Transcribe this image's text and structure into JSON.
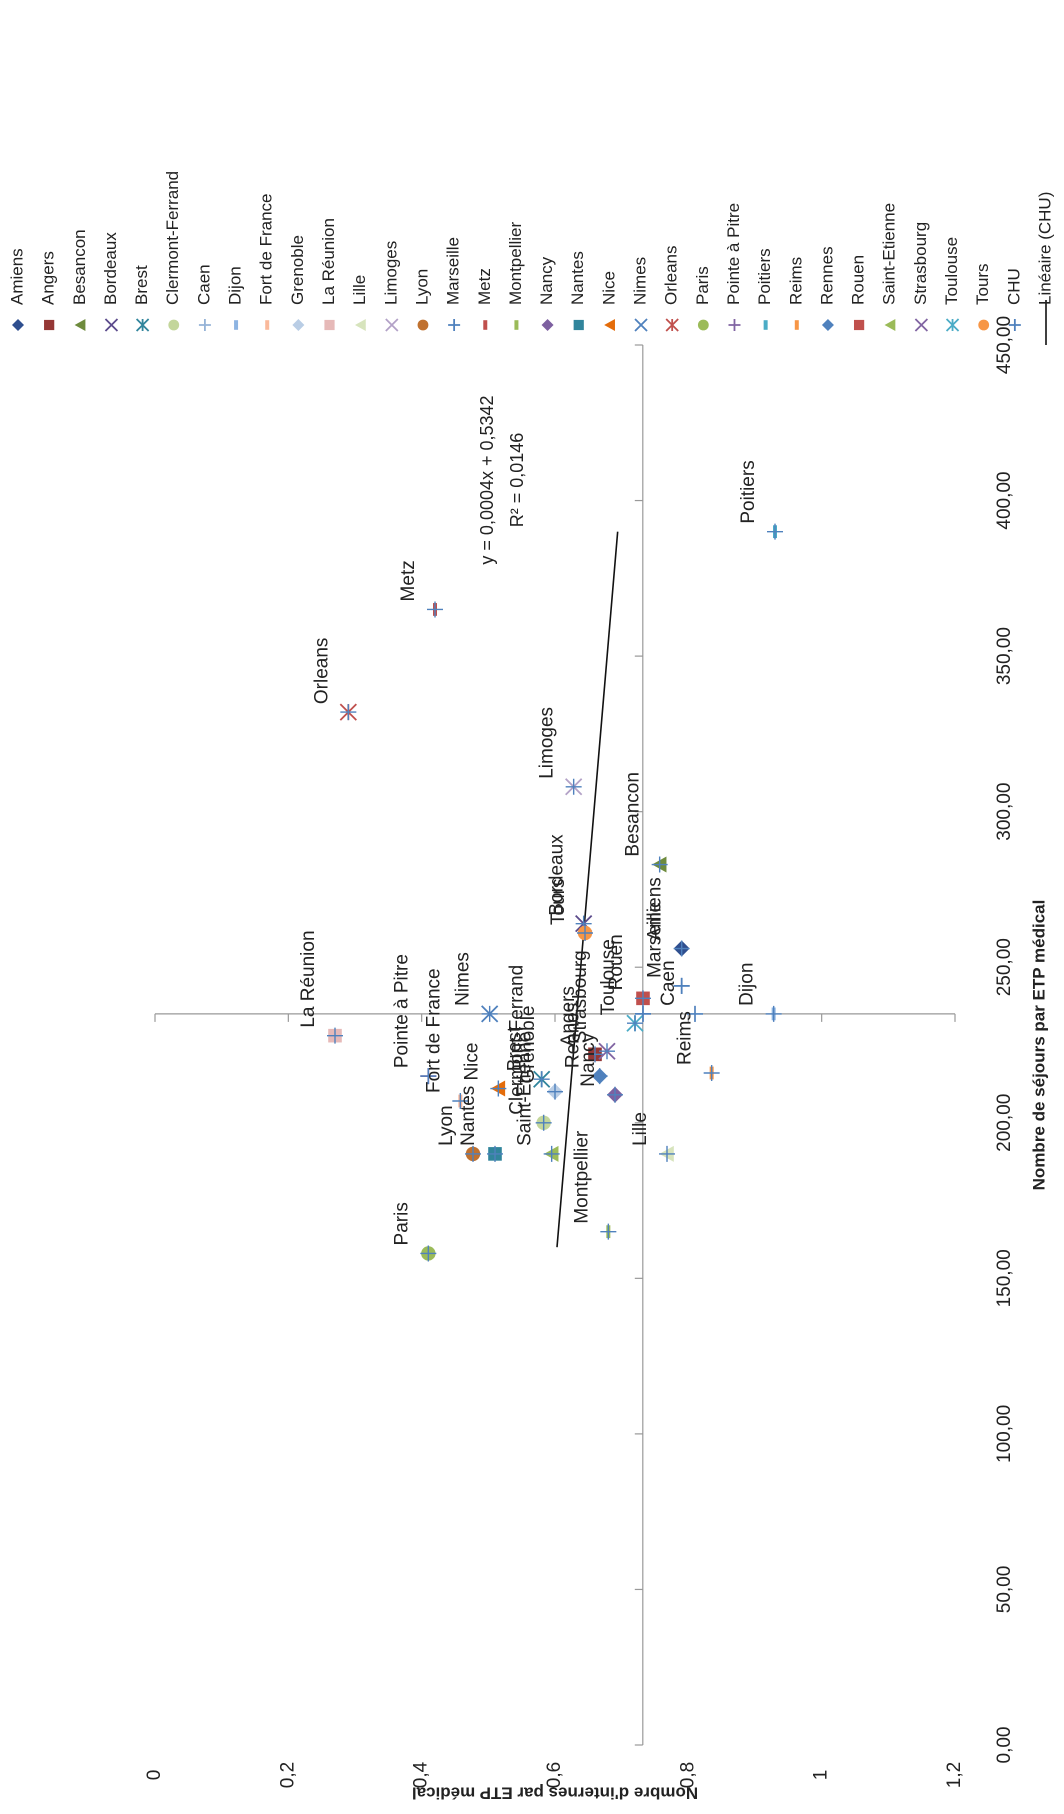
{
  "chart_data": {
    "type": "scatter",
    "title": "",
    "xlabel": "Nombre de séjours par ETP médical",
    "ylabel": "Nombre d'internes par ETP médical",
    "xlim": [
      0,
      450
    ],
    "ylim": [
      0,
      1.2
    ],
    "x_ticks": [
      "0,00",
      "50,00",
      "100,00",
      "150,00",
      "200,00",
      "250,00",
      "300,00",
      "350,00",
      "400,00",
      "450,00"
    ],
    "y_ticks": [
      "0",
      "0,2",
      "0,4",
      "0,6",
      "0,8",
      "1",
      "1,2"
    ],
    "crosshair": {
      "x": 235,
      "y": 0.7317
    },
    "orientation": "rotated 90° clockwise",
    "grid": false,
    "legend_position": "right",
    "points": [
      {
        "name": "Amiens",
        "x": 256,
        "y": 0.79,
        "marker": "diamond",
        "color": "#2f4f8f"
      },
      {
        "name": "Angers",
        "x": 222,
        "y": 0.66,
        "marker": "square",
        "color": "#953735"
      },
      {
        "name": "Besancon",
        "x": 283,
        "y": 0.757,
        "marker": "triangle",
        "color": "#6e8b3d"
      },
      {
        "name": "Bordeaux",
        "x": 264,
        "y": 0.643,
        "marker": "x",
        "color": "#5b4a8b"
      },
      {
        "name": "Brest",
        "x": 214,
        "y": 0.58,
        "marker": "star",
        "color": "#31859c"
      },
      {
        "name": "Clermont-Ferrand",
        "x": 200,
        "y": 0.583,
        "marker": "circle",
        "color": "#c3d69b"
      },
      {
        "name": "Caen",
        "x": 235,
        "y": 0.81,
        "marker": "plus",
        "color": "#95b3d7"
      },
      {
        "name": "Dijon",
        "x": 235,
        "y": 0.928,
        "marker": "dash",
        "color": "#8db4e2"
      },
      {
        "name": "Fort de France",
        "x": 207,
        "y": 0.458,
        "marker": "dash",
        "color": "#fab99b"
      },
      {
        "name": "Grenoble",
        "x": 210,
        "y": 0.6,
        "marker": "diamond",
        "color": "#b9cde5"
      },
      {
        "name": "La Réunion",
        "x": 228,
        "y": 0.27,
        "marker": "square",
        "color": "#e6b9b8"
      },
      {
        "name": "Lille",
        "x": 190,
        "y": 0.768,
        "marker": "triangle",
        "color": "#d7e4bd"
      },
      {
        "name": "Limoges",
        "x": 308,
        "y": 0.628,
        "marker": "x",
        "color": "#b3a2c7"
      },
      {
        "name": "Lyon",
        "x": 190,
        "y": 0.477,
        "marker": "circle",
        "color": "#c0712f"
      },
      {
        "name": "Marseille",
        "x": 244,
        "y": 0.79,
        "marker": "plus",
        "color": "#4f81bd"
      },
      {
        "name": "Metz",
        "x": 365,
        "y": 0.42,
        "marker": "dash",
        "color": "#c0504d"
      },
      {
        "name": "Montpellier",
        "x": 165,
        "y": 0.68,
        "marker": "dash",
        "color": "#9bbb59"
      },
      {
        "name": "Nancy",
        "x": 209,
        "y": 0.69,
        "marker": "diamond",
        "color": "#7d60a0"
      },
      {
        "name": "Nantes",
        "x": 190,
        "y": 0.51,
        "marker": "square",
        "color": "#31859c"
      },
      {
        "name": "Nice",
        "x": 211,
        "y": 0.515,
        "marker": "triangle",
        "color": "#e46c0a"
      },
      {
        "name": "Nimes",
        "x": 235,
        "y": 0.502,
        "marker": "x",
        "color": "#4f81bd"
      },
      {
        "name": "Orleans",
        "x": 332,
        "y": 0.29,
        "marker": "star",
        "color": "#c0504d"
      },
      {
        "name": "Paris",
        "x": 158,
        "y": 0.41,
        "marker": "circle",
        "color": "#9bbb59"
      },
      {
        "name": "Pointe à Pitre",
        "x": 215,
        "y": 0.41,
        "marker": "plus",
        "color": "#8064a2"
      },
      {
        "name": "Poitiers",
        "x": 390,
        "y": 0.93,
        "marker": "dash",
        "color": "#4bacc6"
      },
      {
        "name": "Reims",
        "x": 216,
        "y": 0.835,
        "marker": "dash",
        "color": "#f79646"
      },
      {
        "name": "Rennes",
        "x": 215,
        "y": 0.667,
        "marker": "diamond",
        "color": "#4f81bd"
      },
      {
        "name": "Rouen",
        "x": 240,
        "y": 0.732,
        "marker": "square",
        "color": "#c0504d"
      },
      {
        "name": "Saint-Etienne",
        "x": 190,
        "y": 0.595,
        "marker": "triangle",
        "color": "#9bbb59"
      },
      {
        "name": "Strasbourg",
        "x": 223,
        "y": 0.678,
        "marker": "x",
        "color": "#8064a2"
      },
      {
        "name": "Toulouse",
        "x": 232,
        "y": 0.72,
        "marker": "star",
        "color": "#4bacc6"
      },
      {
        "name": "Tours",
        "x": 261,
        "y": 0.645,
        "marker": "circle",
        "color": "#f79646"
      },
      {
        "name": "CHU",
        "x": 235,
        "y": 0.732,
        "marker": "plus",
        "color": "#4f81bd"
      }
    ],
    "trendline": {
      "name": "Linéaire (CHU)",
      "equation": "y = 0,0004x + 0,5342",
      "r2": "R² = 0,0146",
      "x_range": [
        160,
        390
      ],
      "y_range": [
        0.603,
        0.694
      ]
    },
    "legend": [
      "Amiens",
      "Angers",
      "Besancon",
      "Bordeaux",
      "Brest",
      "Clermont-Ferrand",
      "Caen",
      "Dijon",
      "Fort de France",
      "Grenoble",
      "La Réunion",
      "Lille",
      "Limoges",
      "Lyon",
      "Marseille",
      "Metz",
      "Montpellier",
      "Nancy",
      "Nantes",
      "Nice",
      "Nimes",
      "Orleans",
      "Paris",
      "Pointe à Pitre",
      "Poitiers",
      "Reims",
      "Rennes",
      "Rouen",
      "Saint-Etienne",
      "Strasbourg",
      "Toulouse",
      "Tours",
      "CHU",
      "Linéaire (CHU)"
    ]
  }
}
